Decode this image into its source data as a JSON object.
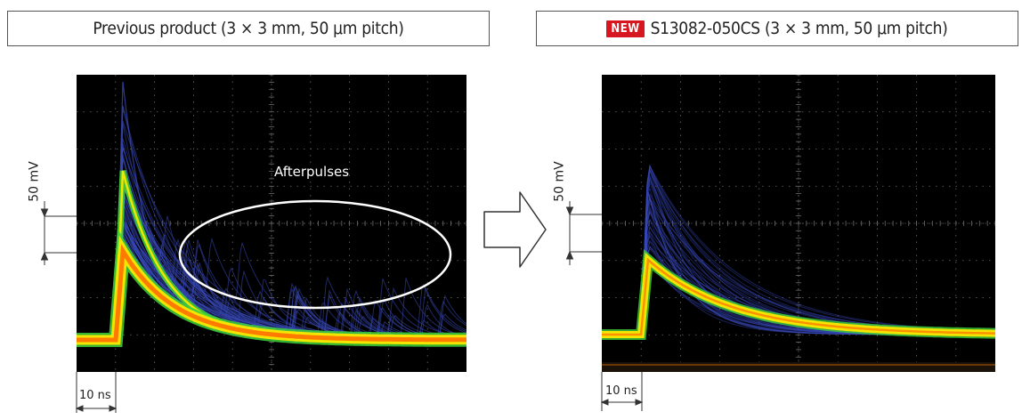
{
  "chart_data": [
    {
      "type": "line",
      "title": "Previous product (3 × 3 mm, 50 μm pitch)",
      "y_scale_label": "50 mV",
      "x_scale_label": "10 ns",
      "annotations": [
        "Afterpulses"
      ],
      "grid": true
    },
    {
      "type": "line",
      "badge": "NEW",
      "title": "S13082-050CS (3 × 3 mm, 50 μm pitch)",
      "y_scale_label": "50 mV",
      "x_scale_label": "10 ns",
      "grid": true
    }
  ],
  "colors": {
    "scope_background": "#000000",
    "grid": "#6b6b6b",
    "trace_core": "#ff7a00",
    "trace_mid": "#f2e600",
    "trace_green": "#3fd23a",
    "trace_faint": "#3848b8",
    "badge": "#d7171f",
    "ellipse": "#ffffff"
  }
}
